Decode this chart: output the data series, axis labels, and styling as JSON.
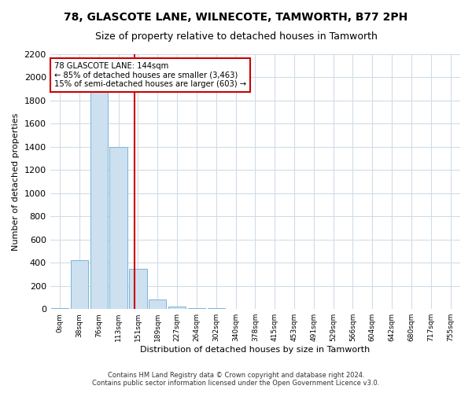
{
  "title": "78, GLASCOTE LANE, WILNECOTE, TAMWORTH, B77 2PH",
  "subtitle": "Size of property relative to detached houses in Tamworth",
  "xlabel": "Distribution of detached houses by size in Tamworth",
  "ylabel": "Number of detached properties",
  "bin_labels": [
    "0sqm",
    "38sqm",
    "76sqm",
    "113sqm",
    "151sqm",
    "189sqm",
    "227sqm",
    "264sqm",
    "302sqm",
    "340sqm",
    "378sqm",
    "415sqm",
    "453sqm",
    "491sqm",
    "529sqm",
    "566sqm",
    "604sqm",
    "642sqm",
    "680sqm",
    "717sqm",
    "755sqm"
  ],
  "bar_values": [
    10,
    420,
    1900,
    1400,
    350,
    80,
    25,
    10,
    5,
    2,
    1,
    0,
    0,
    0,
    0,
    0,
    0,
    0,
    0,
    0,
    0
  ],
  "bar_color": "#cce0f0",
  "bar_edge_color": "#7ab5d8",
  "ylim": [
    0,
    2200
  ],
  "yticks": [
    0,
    200,
    400,
    600,
    800,
    1000,
    1200,
    1400,
    1600,
    1800,
    2000,
    2200
  ],
  "property_size": 144,
  "property_line_color": "#cc0000",
  "annotation_text": "78 GLASCOTE LANE: 144sqm\n← 85% of detached houses are smaller (3,463)\n15% of semi-detached houses are larger (603) →",
  "annotation_box_color": "#cc0000",
  "footer_line1": "Contains HM Land Registry data © Crown copyright and database right 2024.",
  "footer_line2": "Contains public sector information licensed under the Open Government Licence v3.0.",
  "background_color": "#ffffff",
  "grid_color": "#d0dce8",
  "title_fontsize": 10,
  "subtitle_fontsize": 9
}
